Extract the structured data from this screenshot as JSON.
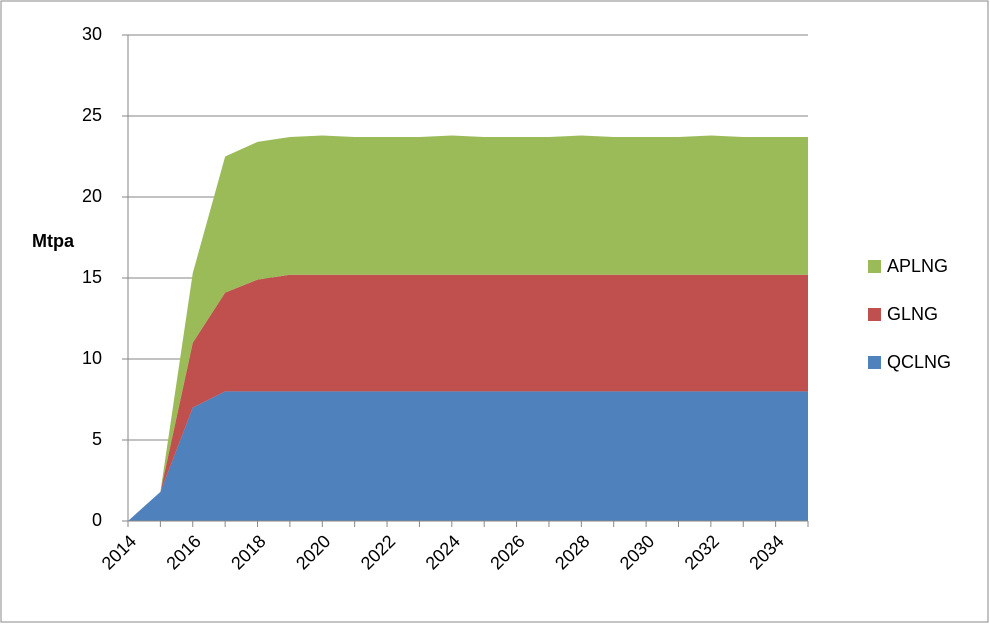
{
  "chart_data": {
    "type": "stacked_area",
    "y_label": "Mtpa",
    "x": [
      2014,
      2015,
      2016,
      2017,
      2018,
      2019,
      2020,
      2021,
      2022,
      2023,
      2024,
      2025,
      2026,
      2027,
      2028,
      2029,
      2030,
      2031,
      2032,
      2033,
      2034,
      2035
    ],
    "xlim": [
      2014,
      2035
    ],
    "xticks": [
      2014,
      2016,
      2018,
      2020,
      2022,
      2024,
      2026,
      2028,
      2030,
      2032,
      2034
    ],
    "ylim": [
      0,
      30
    ],
    "yticks": [
      0,
      5,
      10,
      15,
      20,
      25,
      30
    ],
    "grid": true,
    "legend": "right",
    "series": [
      {
        "name": "QCLNG",
        "color": "#4f81bd",
        "values": [
          0,
          1.8,
          7.0,
          8.0,
          8.0,
          8.0,
          8.0,
          8.0,
          8.0,
          8.0,
          8.0,
          8.0,
          8.0,
          8.0,
          8.0,
          8.0,
          8.0,
          8.0,
          8.0,
          8.0,
          8.0,
          8.0
        ]
      },
      {
        "name": "GLNG",
        "color": "#c0504d",
        "values": [
          0,
          0,
          4.0,
          6.1,
          6.9,
          7.2,
          7.2,
          7.2,
          7.2,
          7.2,
          7.2,
          7.2,
          7.2,
          7.2,
          7.2,
          7.2,
          7.2,
          7.2,
          7.2,
          7.2,
          7.2,
          7.2
        ]
      },
      {
        "name": "APLNG",
        "color": "#9bbb59",
        "values": [
          0,
          0,
          4.3,
          8.4,
          8.5,
          8.5,
          8.6,
          8.5,
          8.5,
          8.5,
          8.6,
          8.5,
          8.5,
          8.5,
          8.6,
          8.5,
          8.5,
          8.5,
          8.6,
          8.5,
          8.5,
          8.5
        ]
      }
    ]
  }
}
